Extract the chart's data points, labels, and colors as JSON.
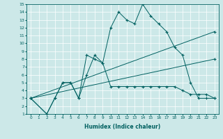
{
  "xlabel": "Humidex (Indice chaleur)",
  "xlim": [
    -0.5,
    23.5
  ],
  "ylim": [
    1,
    15
  ],
  "xticks": [
    0,
    1,
    2,
    3,
    4,
    5,
    6,
    7,
    8,
    9,
    10,
    11,
    12,
    13,
    14,
    15,
    16,
    17,
    18,
    19,
    20,
    21,
    22,
    23
  ],
  "yticks": [
    1,
    2,
    3,
    4,
    5,
    6,
    7,
    8,
    9,
    10,
    11,
    12,
    13,
    14,
    15
  ],
  "bg_color": "#cce8e8",
  "line_color": "#006060",
  "series": [
    {
      "x": [
        0,
        2,
        3,
        4,
        5,
        6,
        7,
        8,
        9,
        10,
        11,
        12,
        13,
        14,
        15,
        16,
        17,
        18,
        19,
        20,
        21,
        22,
        23
      ],
      "y": [
        3,
        1,
        3,
        5,
        5,
        3,
        8.5,
        8,
        7.5,
        12,
        14,
        13,
        12.5,
        15,
        13.5,
        12.5,
        11.5,
        9.5,
        8.5,
        5,
        3,
        3,
        3
      ]
    },
    {
      "x": [
        0,
        2,
        3,
        4,
        5,
        6,
        7,
        8,
        9,
        10,
        11,
        12,
        13,
        14,
        15,
        16,
        17,
        18,
        19,
        20,
        21,
        22,
        23
      ],
      "y": [
        3,
        1,
        3,
        5,
        5,
        3,
        6,
        8.5,
        7.5,
        4.5,
        4.5,
        4.5,
        4.5,
        4.5,
        4.5,
        4.5,
        4.5,
        4.5,
        4,
        3.5,
        3.5,
        3.5,
        3
      ]
    },
    {
      "x": [
        0,
        23
      ],
      "y": [
        3,
        8
      ]
    },
    {
      "x": [
        0,
        23
      ],
      "y": [
        3,
        11.5
      ]
    }
  ]
}
